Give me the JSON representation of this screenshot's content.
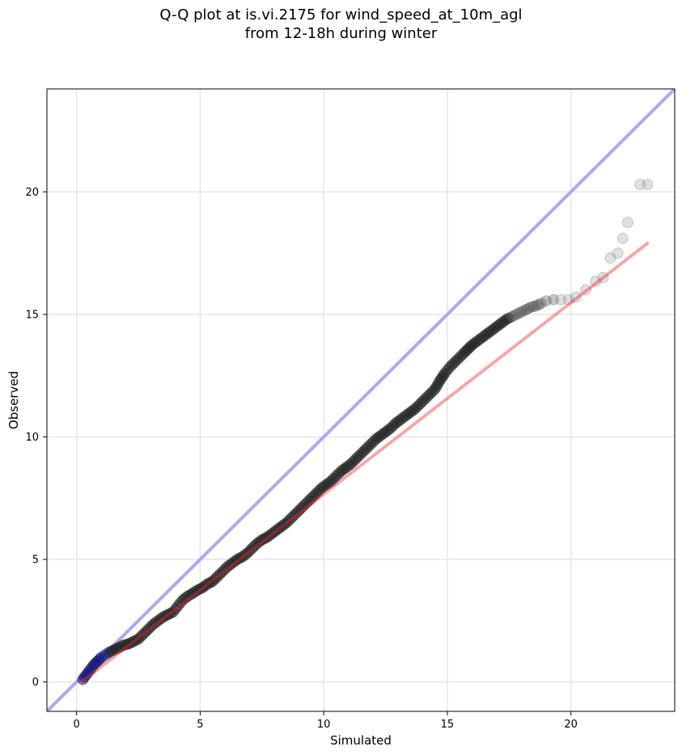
{
  "title_line1": "Q-Q plot at is.vi.2175 for wind_speed_at_10m_agl",
  "title_line2": "from 12-18h during winter",
  "chart_data": {
    "type": "scatter",
    "title": "Q-Q plot at is.vi.2175 for wind_speed_at_10m_agl\nfrom 12-18h during winter",
    "xlabel": "Simulated",
    "ylabel": "Observed",
    "xlim": [
      -1.2,
      24.2
    ],
    "ylim": [
      -1.2,
      24.2
    ],
    "xticks": [
      0,
      5,
      10,
      15,
      20
    ],
    "yticks": [
      0,
      5,
      10,
      15,
      20
    ],
    "xtick_labels": [
      "0",
      "5",
      "10",
      "15",
      "20"
    ],
    "ytick_labels": [
      "0",
      "5",
      "10",
      "15",
      "20"
    ],
    "grid": true,
    "colors": {
      "identity_line": "#aaaaf2",
      "fit_line": "#f5a3a3",
      "points_main": "#222222",
      "points_tail": "#cfcfcf",
      "points_low": "#1a1a8c",
      "points_near_fit": "#8b1a1a"
    },
    "identity_line": {
      "x": [
        -1.2,
        24.2
      ],
      "y": [
        -1.2,
        24.2
      ]
    },
    "fit_line": {
      "x": [
        0.2,
        23.1
      ],
      "y": [
        0.0,
        17.9
      ]
    },
    "series": [
      {
        "x": [
          0.25,
          0.4,
          0.55,
          0.7,
          0.85,
          1.0,
          1.15,
          1.3,
          1.5,
          1.7,
          1.9,
          2.1,
          2.3,
          2.5,
          2.7,
          2.9,
          3.1,
          3.3,
          3.5,
          3.7,
          3.9,
          4.1,
          4.3,
          4.5,
          4.7,
          4.9,
          5.1,
          5.3,
          5.5,
          5.7,
          5.9,
          6.1,
          6.3,
          6.5,
          6.7,
          6.9,
          7.1,
          7.3,
          7.5,
          7.7,
          7.9,
          8.1,
          8.3,
          8.5,
          8.7,
          8.9,
          9.1,
          9.3,
          9.5,
          9.7,
          9.9,
          10.1,
          10.3,
          10.5,
          10.7,
          10.9,
          11.1,
          11.3,
          11.5,
          11.7,
          11.9,
          12.1,
          12.3,
          12.5,
          12.7,
          12.9,
          13.1,
          13.3,
          13.5,
          13.7,
          13.9,
          14.1,
          14.3,
          14.5,
          14.7,
          14.9,
          15.1,
          15.3,
          15.5,
          15.7,
          15.85,
          16.0,
          16.2,
          16.4,
          16.6,
          16.8,
          17.0,
          17.2,
          17.4,
          17.6,
          17.8,
          18.0,
          18.2,
          18.4,
          18.6,
          18.8,
          19.0,
          19.3,
          19.6,
          19.9,
          20.2,
          20.6,
          21.0,
          21.3,
          21.6,
          21.9,
          22.1,
          22.3,
          22.8,
          23.1
        ],
        "y": [
          0.1,
          0.3,
          0.5,
          0.7,
          0.85,
          1.0,
          1.1,
          1.2,
          1.3,
          1.4,
          1.5,
          1.55,
          1.65,
          1.75,
          1.95,
          2.15,
          2.35,
          2.5,
          2.65,
          2.75,
          2.85,
          3.1,
          3.35,
          3.5,
          3.62,
          3.75,
          3.85,
          4.0,
          4.1,
          4.3,
          4.5,
          4.7,
          4.85,
          5.0,
          5.1,
          5.25,
          5.45,
          5.65,
          5.8,
          5.9,
          6.05,
          6.2,
          6.35,
          6.5,
          6.7,
          6.9,
          7.1,
          7.3,
          7.5,
          7.7,
          7.9,
          8.05,
          8.2,
          8.4,
          8.6,
          8.75,
          8.9,
          9.1,
          9.3,
          9.5,
          9.7,
          9.9,
          10.05,
          10.2,
          10.35,
          10.55,
          10.7,
          10.85,
          11.0,
          11.15,
          11.35,
          11.55,
          11.75,
          11.95,
          12.3,
          12.6,
          12.85,
          13.05,
          13.25,
          13.45,
          13.6,
          13.75,
          13.9,
          14.05,
          14.2,
          14.35,
          14.5,
          14.65,
          14.8,
          14.9,
          15.0,
          15.1,
          15.2,
          15.3,
          15.35,
          15.45,
          15.55,
          15.6,
          15.6,
          15.6,
          15.7,
          16.0,
          16.35,
          16.5,
          17.3,
          17.5,
          18.1,
          18.75,
          20.3,
          20.3
        ]
      }
    ]
  }
}
